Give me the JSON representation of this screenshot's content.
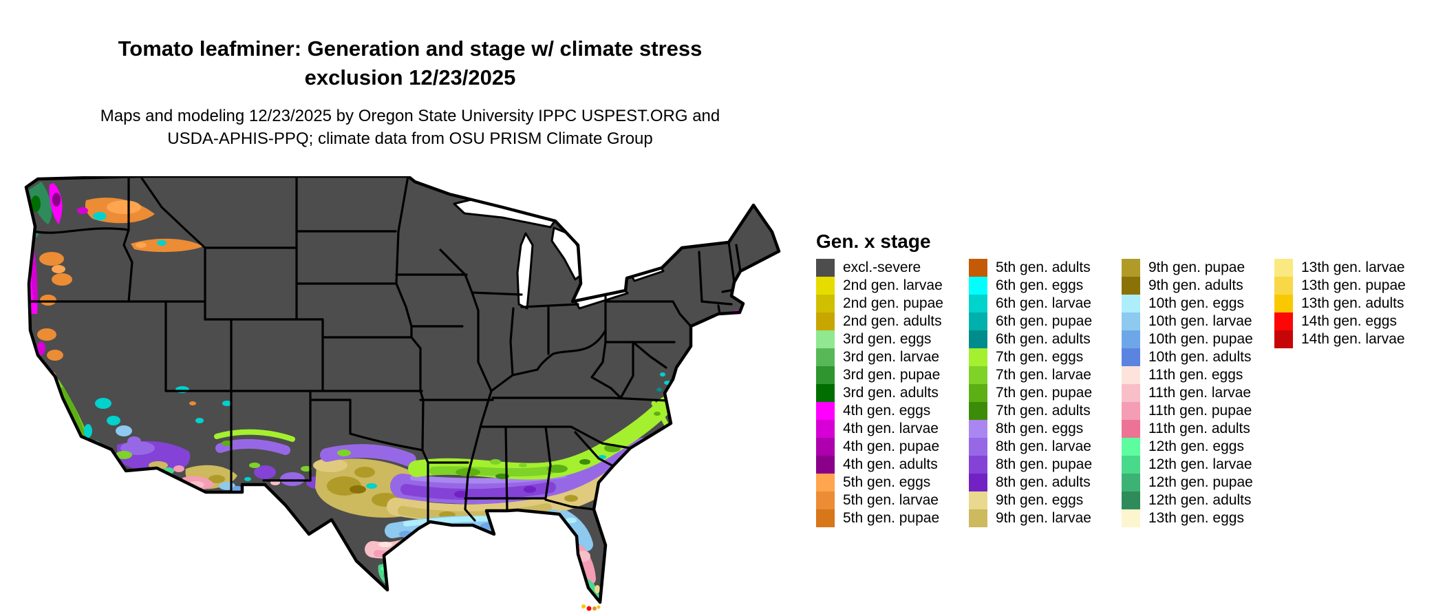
{
  "title": {
    "line1": "Tomato leafminer: Generation and stage w/ climate stress",
    "line2": "exclusion 12/23/2025"
  },
  "subtitle": {
    "line1": "Maps and modeling 12/23/2025 by Oregon State University IPPC USPEST.ORG and",
    "line2": "USDA-APHIS-PPQ; climate data from OSU PRISM Climate Group"
  },
  "legend": {
    "title": "Gen. x stage",
    "columns_split": [
      15,
      15,
      15,
      5
    ]
  },
  "chart_data": {
    "type": "choropleth-map",
    "region": "Contiguous United States (CONUS) with state borders",
    "variable": "Tomato leafminer generation and life stage with climate stress exclusion, valid 12/23/2025",
    "legend_title": "Gen. x stage",
    "classes": [
      {
        "label": "excl.-severe",
        "color": "#4d4d4d"
      },
      {
        "label": "2nd gen. larvae",
        "color": "#e6dc00"
      },
      {
        "label": "2nd gen. pupae",
        "color": "#d0bf00"
      },
      {
        "label": "2nd gen. adults",
        "color": "#c8a600"
      },
      {
        "label": "3rd gen. eggs",
        "color": "#90e890"
      },
      {
        "label": "3rd gen. larvae",
        "color": "#58b858"
      },
      {
        "label": "3rd gen. pupae",
        "color": "#2e962e"
      },
      {
        "label": "3rd gen. adults",
        "color": "#006e00"
      },
      {
        "label": "4th gen. eggs",
        "color": "#ff00ff"
      },
      {
        "label": "4th gen. larvae",
        "color": "#d600d6"
      },
      {
        "label": "4th gen. pupae",
        "color": "#ae00ae"
      },
      {
        "label": "4th gen. adults",
        "color": "#8a008a"
      },
      {
        "label": "5th gen. eggs",
        "color": "#ffa54f"
      },
      {
        "label": "5th gen. larvae",
        "color": "#ec8c34"
      },
      {
        "label": "5th gen. pupae",
        "color": "#d8761a"
      },
      {
        "label": "5th gen. adults",
        "color": "#c45a06"
      },
      {
        "label": "6th gen. eggs",
        "color": "#00ffff"
      },
      {
        "label": "6th gen. larvae",
        "color": "#00d2cc"
      },
      {
        "label": "6th gen. pupae",
        "color": "#00b0ac"
      },
      {
        "label": "6th gen. adults",
        "color": "#008c8c"
      },
      {
        "label": "7th gen. eggs",
        "color": "#a4f02e"
      },
      {
        "label": "7th gen. larvae",
        "color": "#7ed228"
      },
      {
        "label": "7th gen. pupae",
        "color": "#5cb014"
      },
      {
        "label": "7th gen. adults",
        "color": "#3c8c08"
      },
      {
        "label": "8th gen. eggs",
        "color": "#aa86f0"
      },
      {
        "label": "8th gen. larvae",
        "color": "#9768e6"
      },
      {
        "label": "8th gen. pupae",
        "color": "#8442d6"
      },
      {
        "label": "8th gen. adults",
        "color": "#7222c4"
      },
      {
        "label": "9th gen. eggs",
        "color": "#e9d98e"
      },
      {
        "label": "9th gen. larvae",
        "color": "#cdb95e"
      },
      {
        "label": "9th gen. pupae",
        "color": "#b09b28"
      },
      {
        "label": "9th gen. adults",
        "color": "#8a7208"
      },
      {
        "label": "10th gen. eggs",
        "color": "#aeeefc"
      },
      {
        "label": "10th gen. larvae",
        "color": "#8ec9f0"
      },
      {
        "label": "10th gen. pupae",
        "color": "#6ea7e8"
      },
      {
        "label": "10th gen. adults",
        "color": "#5a84e0"
      },
      {
        "label": "11th gen. eggs",
        "color": "#fce4dc"
      },
      {
        "label": "11th gen. larvae",
        "color": "#f8bfc9"
      },
      {
        "label": "11th gen. pupae",
        "color": "#f49db4"
      },
      {
        "label": "11th gen. adults",
        "color": "#ec7296"
      },
      {
        "label": "12th gen. eggs",
        "color": "#5dfc9e"
      },
      {
        "label": "12th gen. larvae",
        "color": "#49d98a"
      },
      {
        "label": "12th gen. pupae",
        "color": "#3cb274"
      },
      {
        "label": "12th gen. adults",
        "color": "#2e8c5a"
      },
      {
        "label": "13th gen. eggs",
        "color": "#fdf5cd"
      },
      {
        "label": "13th gen. larvae",
        "color": "#fae980"
      },
      {
        "label": "13th gen. pupae",
        "color": "#f8d846"
      },
      {
        "label": "13th gen. adults",
        "color": "#fac800"
      },
      {
        "label": "14th gen. eggs",
        "color": "#fc0606"
      },
      {
        "label": "14th gen. larvae",
        "color": "#c60606"
      }
    ],
    "geographic_pattern": [
      "Most of the northern and interior U.S. is dark gray (excl.-severe climate-stress exclusion)",
      "Pacific Northwest: magenta 4th-gen. strip along the WA/OR/N-CA coast with green pockets on the Olympic coast and orange 5th-gen. pockets east of the Cascades and along the Snake River Plain",
      "California Central Valley: green 7th-gen. flanked by teal 6th-gen.; southern California purple 8th-gen. with khaki, pink and light-blue pockets",
      "Southern Arizona low deserts: khaki 9th-gen., pink 11th-gen. and light-blue 10th-gen. patches",
      "Across the South, west-to-east latitudinal bands: chartreuse 7th-gen., purple 8th-gen., khaki/olive 9th-gen., light-blue 10th-gen. toward the Gulf coast",
      "Central Texas: large khaki/olive 9th-gen. area; south Texas pink 11th-gen. and spring-green 12th-gen.",
      "Florida: light-blue north (10th gen.), pink center (11th gen.), spring-green south (12th gen.), yellow/orange/red Florida Keys (13th-14th gen.)",
      "Small 4th-6th gen. pockets along the Atlantic coast up to Long Island and Cape Cod"
    ]
  }
}
